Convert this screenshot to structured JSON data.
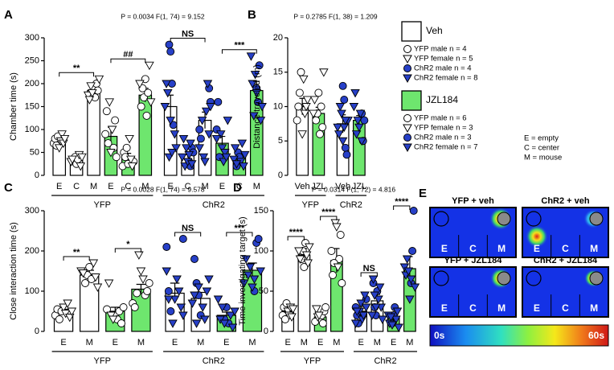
{
  "chart_data": [
    {
      "type": "bar",
      "label": "A",
      "stat": "P = 0.0034  F(1, 74) = 9.152",
      "ylabel": "Chamber time (s)",
      "ylim": [
        0,
        300
      ],
      "yticks": [
        0,
        50,
        100,
        150,
        200,
        250,
        300
      ],
      "categories": [
        "E",
        "C",
        "M",
        "E",
        "C",
        "M",
        "E",
        "C",
        "M",
        "E",
        "C",
        "M"
      ],
      "values": [
        75,
        35,
        185,
        85,
        40,
        175,
        150,
        45,
        120,
        70,
        40,
        185
      ],
      "errors": [
        10,
        5,
        10,
        20,
        8,
        15,
        25,
        6,
        18,
        15,
        6,
        20
      ],
      "bar_colors": [
        "#ffffff",
        "#ffffff",
        "#ffffff",
        "#6ee66e",
        "#6ee66e",
        "#6ee66e",
        "#ffffff",
        "#ffffff",
        "#ffffff",
        "#6ee66e",
        "#6ee66e",
        "#6ee66e"
      ],
      "groups": [
        {
          "label": "YFP",
          "marker_color": "#ffffff"
        },
        {
          "label": "ChR2",
          "marker_color": "#2740c8"
        }
      ],
      "points": [
        {
          "m": [
            70,
            80,
            65,
            85
          ],
          "f": [
            60,
            75,
            90,
            70,
            80
          ]
        },
        {
          "m": [
            30,
            40,
            25,
            35
          ],
          "f": [
            45,
            20,
            40,
            30,
            35
          ]
        },
        {
          "m": [
            190,
            170,
            200,
            185
          ],
          "f": [
            210,
            175,
            165,
            195,
            180
          ]
        },
        {
          "m": [
            60,
            120,
            40,
            90,
            140,
            70
          ],
          "f": [
            160,
            50,
            100
          ]
        },
        {
          "m": [
            30,
            20,
            50,
            40,
            60,
            25
          ],
          "f": [
            80,
            35,
            20
          ]
        },
        {
          "m": [
            150,
            190,
            170,
            210,
            130,
            180
          ],
          "f": [
            240,
            160,
            200
          ]
        },
        {
          "m": [
            285,
            270,
            200,
            110
          ],
          "f": [
            90,
            60,
            150,
            200,
            180,
            40,
            120,
            50
          ]
        },
        {
          "m": [
            30,
            20,
            60,
            50
          ],
          "f": [
            40,
            80,
            20,
            60,
            30,
            45,
            70,
            25
          ]
        },
        {
          "m": [
            190,
            160,
            100,
            80
          ],
          "f": [
            120,
            40,
            30,
            140,
            200,
            90,
            150,
            60
          ]
        },
        {
          "m": [
            100,
            160,
            40
          ],
          "f": [
            90,
            60,
            30,
            50,
            40,
            120,
            80
          ]
        },
        {
          "m": [
            20,
            50,
            40
          ],
          "f": [
            30,
            70,
            20,
            45,
            35,
            60,
            25
          ]
        },
        {
          "m": [
            190,
            160,
            240
          ],
          "f": [
            120,
            150,
            260,
            200,
            130,
            220,
            180
          ]
        }
      ],
      "comparisons": [
        {
          "from": 0,
          "to": 2,
          "label": "**"
        },
        {
          "from": 3,
          "to": 5,
          "label": "##"
        },
        {
          "from": 6,
          "to": 8,
          "label": "NS"
        },
        {
          "from": 9,
          "to": 11,
          "label": "***"
        }
      ]
    },
    {
      "type": "bar",
      "label": "B",
      "stat": "P = 0.2785  F(1, 38) = 1.209",
      "ylabel": "Distance traveled (m)",
      "ylim": [
        0,
        20
      ],
      "yticks": [
        0,
        5,
        10,
        15,
        20
      ],
      "categories": [
        "Veh",
        "JZL",
        "Veh",
        "JZL"
      ],
      "values": [
        10,
        9,
        7.5,
        8
      ],
      "errors": [
        1.2,
        0.9,
        1.3,
        0.7
      ],
      "bar_colors": [
        "#ffffff",
        "#6ee66e",
        "#ffffff",
        "#6ee66e"
      ],
      "groups": [
        {
          "label": "YFP",
          "marker_color": "#ffffff"
        },
        {
          "label": "ChR2",
          "marker_color": "#2740c8"
        }
      ],
      "points": [
        {
          "m": [
            8,
            10,
            12,
            15
          ],
          "f": [
            6,
            14,
            9,
            10,
            11
          ]
        },
        {
          "m": [
            8,
            9,
            12,
            6,
            10,
            7
          ],
          "f": [
            15,
            9,
            11
          ]
        },
        {
          "m": [
            13,
            11,
            4,
            3
          ],
          "f": [
            8,
            7,
            6,
            10,
            9,
            5,
            7,
            8
          ]
        },
        {
          "m": [
            9,
            5,
            8
          ],
          "f": [
            10,
            12,
            6,
            8,
            7,
            9,
            5
          ]
        }
      ],
      "comparisons": []
    },
    {
      "type": "bar",
      "label": "C",
      "stat": "P = 0.0028  F(1, 74) = 9.578",
      "ylabel": "Close interaction time (s)",
      "ylim": [
        0,
        300
      ],
      "yticks": [
        0,
        100,
        200,
        300
      ],
      "categories": [
        "E",
        "M",
        "E",
        "M",
        "E",
        "M",
        "E",
        "M"
      ],
      "values": [
        50,
        140,
        50,
        105,
        95,
        82,
        40,
        152
      ],
      "errors": [
        5,
        12,
        10,
        12,
        25,
        15,
        8,
        18
      ],
      "bar_colors": [
        "#ffffff",
        "#ffffff",
        "#6ee66e",
        "#6ee66e",
        "#ffffff",
        "#ffffff",
        "#6ee66e",
        "#6ee66e"
      ],
      "groups": [
        {
          "label": "YFP",
          "marker_color": "#ffffff"
        },
        {
          "label": "ChR2",
          "marker_color": "#2740c8"
        }
      ],
      "points": [
        {
          "m": [
            40,
            55,
            30,
            50
          ],
          "f": [
            60,
            45,
            70,
            35,
            50
          ]
        },
        {
          "m": [
            120,
            140,
            160,
            130
          ],
          "f": [
            170,
            135,
            110,
            150,
            145
          ]
        },
        {
          "m": [
            40,
            30,
            50,
            20,
            60,
            55
          ],
          "f": [
            120,
            40,
            30
          ]
        },
        {
          "m": [
            90,
            100,
            120,
            70,
            60,
            95
          ],
          "f": [
            190,
            150,
            130
          ]
        },
        {
          "m": [
            230,
            210,
            100,
            50
          ],
          "f": [
            20,
            80,
            130,
            100,
            60,
            40,
            150,
            80
          ]
        },
        {
          "m": [
            180,
            120,
            90,
            40
          ],
          "f": [
            60,
            30,
            100,
            130,
            70,
            90,
            20,
            110
          ]
        },
        {
          "m": [
            30,
            60,
            20
          ],
          "f": [
            40,
            10,
            50,
            80,
            30,
            60,
            20
          ]
        },
        {
          "m": [
            100,
            220,
            230
          ],
          "f": [
            150,
            120,
            180,
            140,
            160,
            110,
            130
          ]
        }
      ],
      "comparisons": [
        {
          "from": 0,
          "to": 1,
          "label": "**"
        },
        {
          "from": 2,
          "to": 3,
          "label": "*"
        },
        {
          "from": 4,
          "to": 5,
          "label": "NS"
        },
        {
          "from": 6,
          "to": 7,
          "label": "***"
        }
      ]
    },
    {
      "type": "bar",
      "label": "D",
      "stat": "P = 0.0314  F(1, 72) = 4.816",
      "ylabel": "Time investigating target (s)",
      "ylim": [
        0,
        150
      ],
      "yticks": [
        0,
        50,
        100,
        150
      ],
      "categories": [
        "E",
        "M",
        "E",
        "M",
        "E",
        "M",
        "E",
        "M"
      ],
      "values": [
        25,
        95,
        18,
        88,
        25,
        38,
        17,
        78
      ],
      "errors": [
        3,
        8,
        4,
        15,
        6,
        8,
        3,
        15
      ],
      "bar_colors": [
        "#ffffff",
        "#ffffff",
        "#6ee66e",
        "#6ee66e",
        "#ffffff",
        "#ffffff",
        "#6ee66e",
        "#6ee66e"
      ],
      "groups": [
        {
          "label": "YFP",
          "marker_color": "#ffffff"
        },
        {
          "label": "ChR2",
          "marker_color": "#2740c8"
        }
      ],
      "points": [
        {
          "m": [
            20,
            30,
            15,
            35
          ],
          "f": [
            25,
            20,
            30,
            18,
            28
          ]
        },
        {
          "m": [
            90,
            100,
            80,
            110
          ],
          "f": [
            95,
            85,
            105,
            100,
            90
          ]
        },
        {
          "m": [
            15,
            20,
            10,
            25,
            30,
            12
          ],
          "f": [
            28,
            18,
            20
          ]
        },
        {
          "m": [
            90,
            120,
            60,
            100,
            70,
            85
          ],
          "f": [
            135,
            130,
            80
          ]
        },
        {
          "m": [
            40,
            30,
            20,
            10
          ],
          "f": [
            25,
            35,
            15,
            20,
            45,
            30,
            10,
            25
          ]
        },
        {
          "m": [
            60,
            30,
            20,
            50
          ],
          "f": [
            40,
            55,
            30,
            15,
            20,
            65,
            45,
            30
          ]
        },
        {
          "m": [
            10,
            20,
            30
          ],
          "f": [
            15,
            25,
            5,
            20,
            10,
            18,
            8
          ]
        },
        {
          "m": [
            60,
            100,
            150
          ],
          "f": [
            55,
            80,
            70,
            90,
            75,
            40,
            65
          ]
        }
      ],
      "comparisons": [
        {
          "from": 0,
          "to": 1,
          "label": "****"
        },
        {
          "from": 2,
          "to": 3,
          "label": "****"
        },
        {
          "from": 4,
          "to": 5,
          "label": "NS"
        },
        {
          "from": 6,
          "to": 7,
          "label": "****"
        }
      ]
    },
    {
      "type": "heatmap",
      "label": "E",
      "panels": [
        {
          "title": "YFP + veh"
        },
        {
          "title": "ChR2 + veh"
        },
        {
          "title": "YFP + JZL184"
        },
        {
          "title": "ChR2 + JZL184"
        }
      ],
      "zones": [
        "E",
        "C",
        "M"
      ],
      "colorbar": {
        "min_label": "0s",
        "max_label": "60s"
      }
    }
  ],
  "legend": {
    "groups": [
      {
        "name": "Veh",
        "color": "#ffffff",
        "items": [
          {
            "label": "YFP male n = 4",
            "shape": "circle",
            "fill": "#ffffff"
          },
          {
            "label": "YFP female n = 5",
            "shape": "triangle",
            "fill": "#ffffff"
          },
          {
            "label": "ChR2 male n = 4",
            "shape": "circle",
            "fill": "#2740c8"
          },
          {
            "label": "ChR2 female n = 8",
            "shape": "triangle",
            "fill": "#2740c8"
          }
        ]
      },
      {
        "name": "JZL184",
        "color": "#6ee66e",
        "items": [
          {
            "label": "YFP male n = 6",
            "shape": "circle",
            "fill": "#ffffff"
          },
          {
            "label": "YFP female n = 3",
            "shape": "triangle",
            "fill": "#ffffff"
          },
          {
            "label": "ChR2 male n = 3",
            "shape": "circle",
            "fill": "#2740c8"
          },
          {
            "label": "ChR2 female n = 7",
            "shape": "triangle",
            "fill": "#2740c8"
          }
        ]
      }
    ],
    "key": [
      "E = empty",
      "C = center",
      "M = mouse"
    ]
  }
}
